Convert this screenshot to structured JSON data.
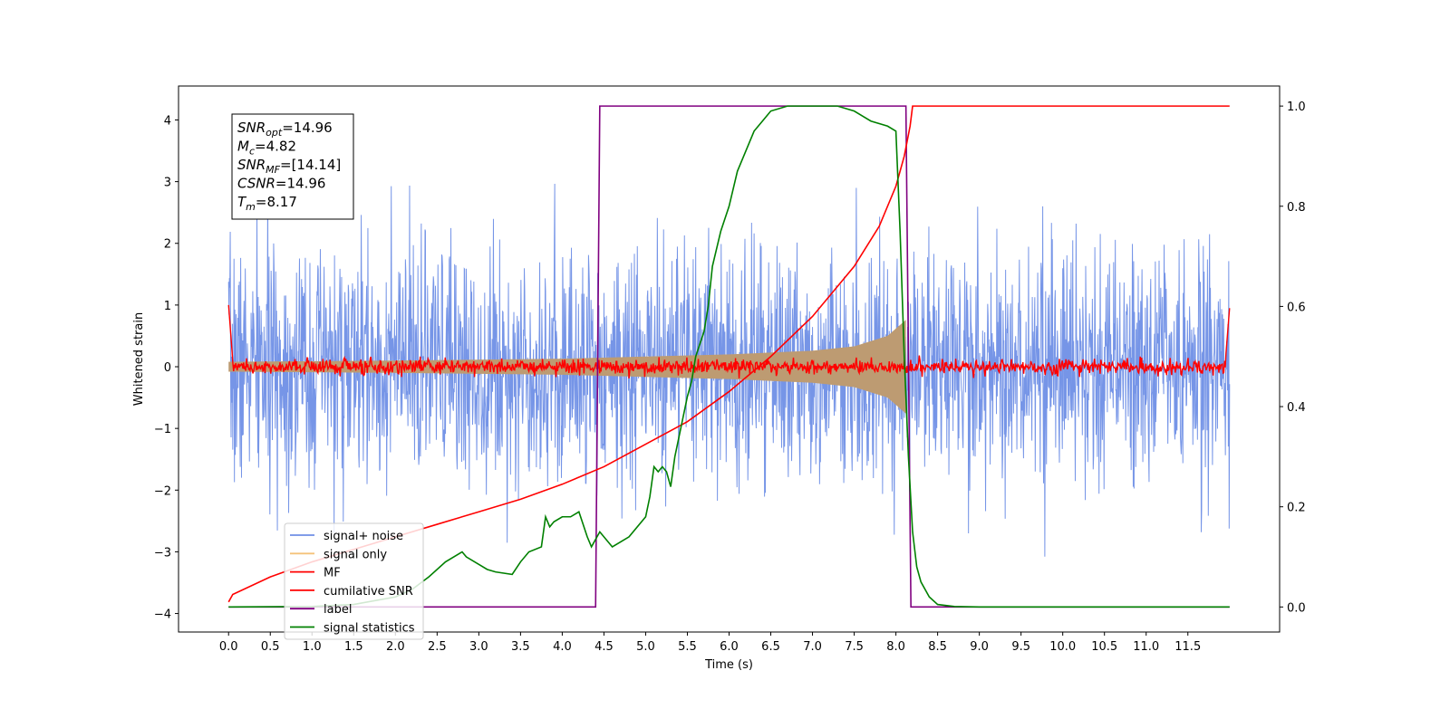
{
  "chart_data": {
    "type": "line",
    "xlabel": "Time (s)",
    "ylabel": "Whitened strain",
    "xlim": [
      -0.6,
      12.6
    ],
    "ylim": [
      -4.3,
      4.55
    ],
    "y2lim": [
      -0.05,
      1.04
    ],
    "x_ticks": [
      "0.0",
      "0.5",
      "1.0",
      "1.5",
      "2.0",
      "2.5",
      "3.0",
      "3.5",
      "4.0",
      "4.5",
      "5.0",
      "5.5",
      "6.0",
      "6.5",
      "7.0",
      "7.5",
      "8.0",
      "8.5",
      "9.0",
      "9.5",
      "10.0",
      "10.5",
      "11.0",
      "11.5"
    ],
    "y_ticks": [
      "−4",
      "−3",
      "−2",
      "−1",
      "0",
      "1",
      "2",
      "3",
      "4"
    ],
    "y2_ticks": [
      "0.0",
      "0.2",
      "0.4",
      "0.6",
      "0.8",
      "1.0"
    ],
    "annotation": {
      "lines": [
        {
          "main": "SNR",
          "sub": "opt",
          "rest": "=14.96"
        },
        {
          "main": "M",
          "sub": "c",
          "rest": "=4.82"
        },
        {
          "main": "SNR",
          "sub": "MF",
          "rest": "=[14.14]"
        },
        {
          "main": "CSNR",
          "sub": "",
          "rest": "=14.96"
        },
        {
          "main": "T",
          "sub": "m",
          "rest": "=8.17"
        }
      ]
    },
    "legend_position": "lower-left",
    "legend": [
      {
        "label": "signal+ noise",
        "color": "#6f8fe6"
      },
      {
        "label": "signal only",
        "color": "#f5c27a"
      },
      {
        "label": "MF",
        "color": "#ff0000"
      },
      {
        "label": "cumilative SNR",
        "color": "#ff0000"
      },
      {
        "label": "label",
        "color": "#800080"
      },
      {
        "label": "signal statistics",
        "color": "#008000"
      }
    ],
    "series_settings": {
      "noise_sigma": 0.95,
      "signal_envelope": [
        [
          0.0,
          0.08
        ],
        [
          2.0,
          0.1
        ],
        [
          4.0,
          0.13
        ],
        [
          6.0,
          0.2
        ],
        [
          7.0,
          0.26
        ],
        [
          7.5,
          0.33
        ],
        [
          7.9,
          0.5
        ],
        [
          8.12,
          0.76
        ]
      ],
      "mf_sigma": 0.06,
      "mf_edges": [
        [
          0.0,
          1.0
        ],
        [
          0.05,
          0.1
        ],
        [
          11.95,
          0.1
        ],
        [
          12.0,
          0.95
        ]
      ]
    },
    "cumulative_snr": {
      "axis": "right",
      "x": [
        0.0,
        0.05,
        0.5,
        1.0,
        1.5,
        2.0,
        2.5,
        3.0,
        3.5,
        4.0,
        4.5,
        5.0,
        5.5,
        6.0,
        6.5,
        7.0,
        7.5,
        7.8,
        8.0,
        8.1,
        8.17,
        8.2,
        12.0
      ],
      "y": [
        0.01,
        0.025,
        0.06,
        0.09,
        0.115,
        0.14,
        0.165,
        0.19,
        0.215,
        0.245,
        0.28,
        0.325,
        0.37,
        0.43,
        0.5,
        0.58,
        0.68,
        0.76,
        0.84,
        0.9,
        0.96,
        1.0,
        1.0
      ]
    },
    "label_series": {
      "axis": "right",
      "x": [
        0.0,
        4.4,
        4.45,
        8.12,
        8.18,
        12.0
      ],
      "y": [
        0.0,
        0.0,
        1.0,
        1.0,
        0.0,
        0.0
      ]
    },
    "signal_statistics": {
      "axis": "right",
      "x": [
        0.0,
        1.0,
        1.5,
        2.0,
        2.2,
        2.4,
        2.6,
        2.8,
        2.85,
        3.0,
        3.1,
        3.2,
        3.4,
        3.5,
        3.6,
        3.75,
        3.8,
        3.85,
        3.9,
        4.0,
        4.1,
        4.2,
        4.3,
        4.35,
        4.45,
        4.6,
        4.7,
        4.8,
        5.0,
        5.05,
        5.1,
        5.15,
        5.2,
        5.25,
        5.3,
        5.35,
        5.45,
        5.5,
        5.55,
        5.6,
        5.7,
        5.75,
        5.8,
        5.9,
        6.0,
        6.1,
        6.2,
        6.3,
        6.4,
        6.5,
        6.7,
        6.9,
        7.1,
        7.3,
        7.5,
        7.7,
        7.9,
        8.0,
        8.05,
        8.1,
        8.15,
        8.2,
        8.25,
        8.3,
        8.4,
        8.5,
        8.7,
        9.0,
        12.0
      ],
      "y": [
        0.0,
        0.001,
        0.005,
        0.02,
        0.035,
        0.06,
        0.09,
        0.11,
        0.1,
        0.085,
        0.075,
        0.07,
        0.065,
        0.09,
        0.11,
        0.12,
        0.18,
        0.16,
        0.17,
        0.18,
        0.18,
        0.19,
        0.14,
        0.12,
        0.15,
        0.12,
        0.13,
        0.14,
        0.18,
        0.22,
        0.28,
        0.27,
        0.28,
        0.27,
        0.24,
        0.3,
        0.38,
        0.42,
        0.45,
        0.5,
        0.55,
        0.6,
        0.68,
        0.75,
        0.8,
        0.87,
        0.91,
        0.95,
        0.97,
        0.99,
        1.0,
        1.0,
        1.0,
        1.0,
        0.99,
        0.97,
        0.96,
        0.95,
        0.75,
        0.5,
        0.3,
        0.15,
        0.08,
        0.05,
        0.02,
        0.005,
        0.001,
        0.0,
        0.0
      ]
    }
  }
}
